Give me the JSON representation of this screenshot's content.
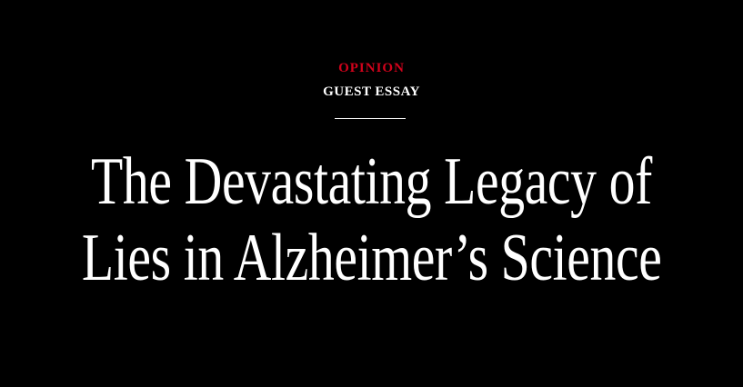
{
  "article": {
    "section": "OPINION",
    "kicker": "GUEST ESSAY",
    "headline_lines": [
      "The Devastating Legacy of",
      "Lies in Alzheimer’s Science"
    ]
  },
  "colors": {
    "background": "#000000",
    "section_accent": "#d0021b",
    "text": "#ffffff"
  }
}
